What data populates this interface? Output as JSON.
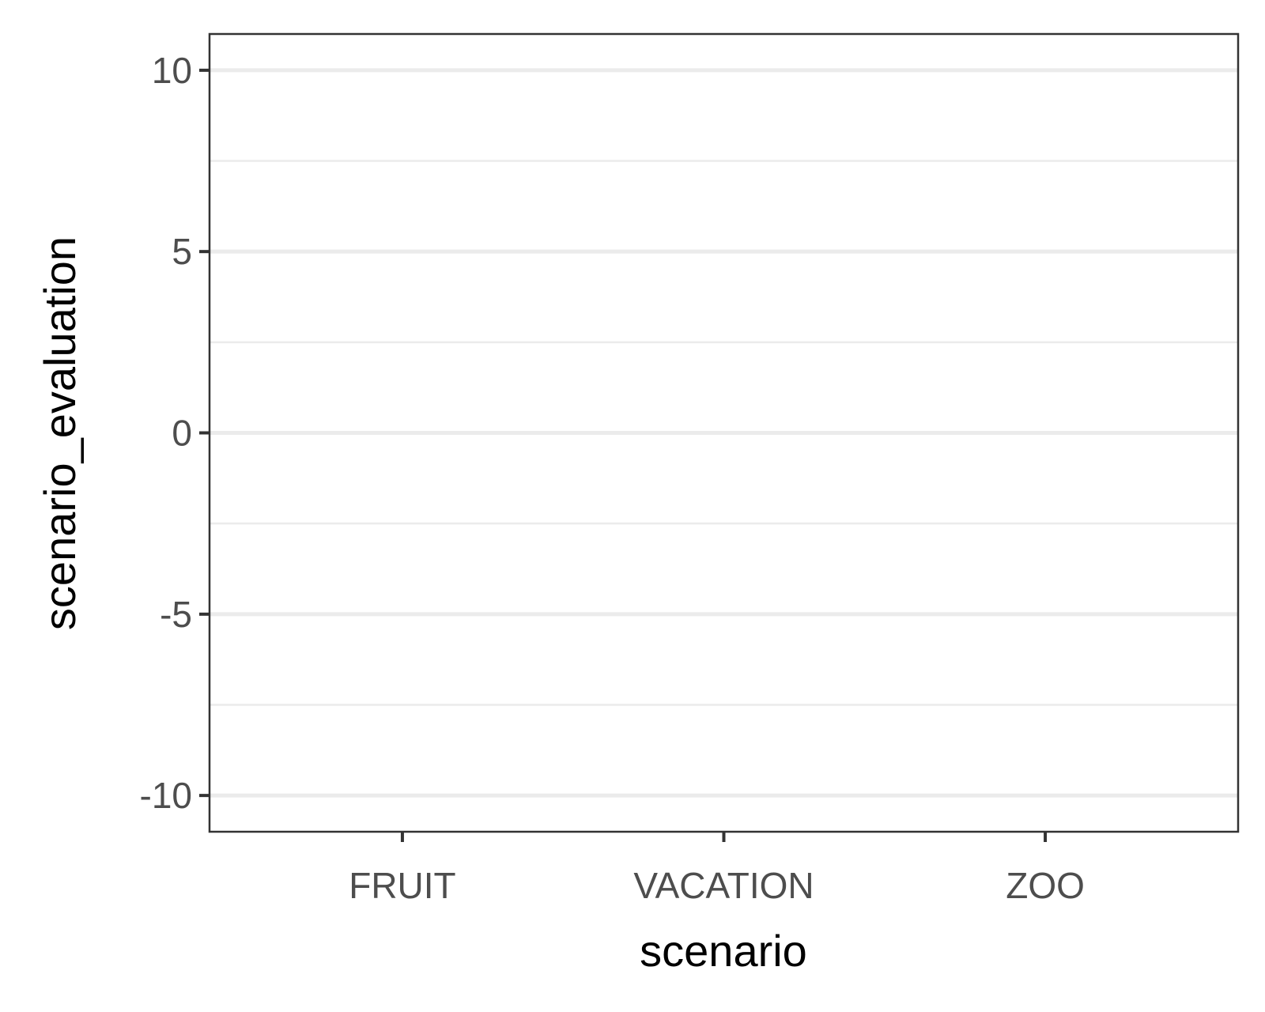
{
  "chart_data": {
    "type": "bar",
    "x_label": "scenario",
    "y_label": "scenario_evaluation",
    "categories": [
      "FRUIT",
      "VACATION",
      "ZOO"
    ],
    "ylim": [
      -11,
      11
    ],
    "yticks": [
      -10,
      -5,
      0,
      5,
      10
    ],
    "yminor_ticks": [
      -7.5,
      -2.5,
      2.5,
      7.5
    ],
    "grid": true
  }
}
